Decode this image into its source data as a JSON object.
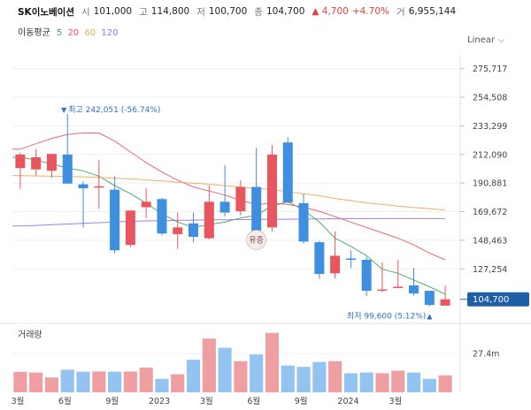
{
  "header": {
    "stock_name": "SK이노베이션",
    "open_label": "시",
    "open": "101,000",
    "high_label": "고",
    "high": "114,800",
    "low_label": "저",
    "low": "100,700",
    "close_label": "종",
    "close": "104,700",
    "change": "▲ 4,700",
    "change_pct": "+4.70%",
    "volume_label": "거",
    "volume": "6,955,144"
  },
  "moving_avg": {
    "title": "이동평균",
    "periods": [
      "5",
      "20",
      "60",
      "120"
    ],
    "colors": [
      "#3aa657",
      "#e8575f",
      "#f3a45a",
      "#9b6fe0"
    ]
  },
  "scale_button": {
    "label": "Linear"
  },
  "colors": {
    "up": "#e8575f",
    "down": "#3e8fe0",
    "vol_up": "#ef9ea2",
    "vol_down": "#93c3f0",
    "price_tag": "#1f5fa8"
  },
  "chart_data": {
    "type": "candlestick",
    "price_axis": {
      "ticks": [
        "275,717",
        "254,508",
        "233,299",
        "212,090",
        "190,881",
        "169,672",
        "148,463",
        "127,254"
      ],
      "tick_values": [
        275717,
        254508,
        233299,
        212090,
        190881,
        169672,
        148463,
        127254
      ],
      "range": [
        96000,
        286000
      ]
    },
    "current_price_tag": "104,700",
    "current_price": 104700,
    "x_labels": [
      "3월",
      "6월",
      "9월",
      "2023",
      "3월",
      "6월",
      "9월",
      "2024",
      "3월"
    ],
    "x_label_index": [
      0,
      3,
      6,
      9,
      12,
      15,
      18,
      21,
      24
    ],
    "max_annotation": "최고 242,051 (-56.74%)",
    "max_index": 3,
    "max_value": 242051,
    "min_annotation": "최저 99,600 (5.12%)",
    "min_value": 99600,
    "split_label": "유증",
    "split_index": 15,
    "volume_label": "거래량",
    "volume_tick": "27.4m",
    "volume_tick_value": 27400000,
    "candles": [
      {
        "o": 202000,
        "h": 213500,
        "l": 186500,
        "c": 212000
      },
      {
        "o": 201000,
        "h": 216000,
        "l": 196500,
        "c": 210000
      },
      {
        "o": 200000,
        "h": 212000,
        "l": 195000,
        "c": 212500
      },
      {
        "o": 212000,
        "h": 242051,
        "l": 190000,
        "c": 190500
      },
      {
        "o": 190000,
        "h": 192000,
        "l": 158000,
        "c": 187000
      },
      {
        "o": 188000,
        "h": 208000,
        "l": 172000,
        "c": 188500
      },
      {
        "o": 186000,
        "h": 196000,
        "l": 139000,
        "c": 141000
      },
      {
        "o": 145000,
        "h": 171000,
        "l": 143500,
        "c": 170500
      },
      {
        "o": 173000,
        "h": 187000,
        "l": 165000,
        "c": 177000
      },
      {
        "o": 179000,
        "h": 180000,
        "l": 152000,
        "c": 153500
      },
      {
        "o": 153000,
        "h": 169000,
        "l": 142000,
        "c": 158000
      },
      {
        "o": 161000,
        "h": 169000,
        "l": 147000,
        "c": 151000
      },
      {
        "o": 150000,
        "h": 189000,
        "l": 149000,
        "c": 177000
      },
      {
        "o": 177000,
        "h": 204000,
        "l": 166000,
        "c": 169000
      },
      {
        "o": 170000,
        "h": 193000,
        "l": 167000,
        "c": 188000
      },
      {
        "o": 188000,
        "h": 217000,
        "l": 154000,
        "c": 155000
      },
      {
        "o": 158000,
        "h": 219000,
        "l": 155000,
        "c": 212000
      },
      {
        "o": 221000,
        "h": 225000,
        "l": 176000,
        "c": 176500
      },
      {
        "o": 176000,
        "h": 183000,
        "l": 146000,
        "c": 147500
      },
      {
        "o": 147000,
        "h": 148000,
        "l": 120000,
        "c": 123500
      },
      {
        "o": 124000,
        "h": 155000,
        "l": 120000,
        "c": 137000
      },
      {
        "o": 135000,
        "h": 141000,
        "l": 128000,
        "c": 134000
      },
      {
        "o": 134000,
        "h": 136000,
        "l": 107000,
        "c": 111000
      },
      {
        "o": 112000,
        "h": 132000,
        "l": 110000,
        "c": 112000
      },
      {
        "o": 113000,
        "h": 134000,
        "l": 113000,
        "c": 114000
      },
      {
        "o": 115000,
        "h": 128000,
        "l": 107500,
        "c": 109000
      },
      {
        "o": 111000,
        "h": 111000,
        "l": 99600,
        "c": 100500
      },
      {
        "o": 100000,
        "h": 114800,
        "l": 100000,
        "c": 104700
      }
    ],
    "volume": [
      14.5,
      14.0,
      10.5,
      16.0,
      14.6,
      14.8,
      14.6,
      14.7,
      17.5,
      9.5,
      12.8,
      23.0,
      38.0,
      31.5,
      22.0,
      26.8,
      42.0,
      19.0,
      18.0,
      21.5,
      22.0,
      13.5,
      14.0,
      13.5,
      15.3,
      14.0,
      9.5,
      12.0
    ],
    "ma5": [
      210000,
      208000,
      205000,
      202000,
      200000,
      196000,
      189000,
      183000,
      176000,
      168000,
      162000,
      158000,
      160000,
      162000,
      165000,
      167000,
      174000,
      177000,
      171000,
      162000,
      150000,
      144000,
      137000,
      127000,
      124000,
      119000,
      114000,
      108500
    ],
    "ma20": [
      216000,
      220000,
      224000,
      227000,
      228000,
      228000,
      222000,
      214000,
      206000,
      199000,
      193000,
      188000,
      185000,
      182000,
      178000,
      175000,
      176000,
      175000,
      173000,
      170000,
      166000,
      162000,
      158000,
      154000,
      150000,
      145000,
      139000,
      134000
    ],
    "ma60": [
      196500,
      196200,
      196000,
      195800,
      195500,
      195000,
      194500,
      194000,
      193200,
      192500,
      191500,
      190800,
      190000,
      189000,
      188000,
      187000,
      186000,
      184500,
      183000,
      181500,
      179500,
      177800,
      176200,
      175000,
      173800,
      172800,
      171800,
      171000
    ],
    "ma120": [
      159000,
      159500,
      160000,
      160500,
      161000,
      161500,
      162000,
      162500,
      162800,
      163000,
      163200,
      163400,
      163600,
      163700,
      163800,
      163900,
      164000,
      164100,
      164200,
      164300,
      164400,
      164500,
      164500,
      164500,
      164500,
      164500,
      164500,
      164500
    ]
  }
}
